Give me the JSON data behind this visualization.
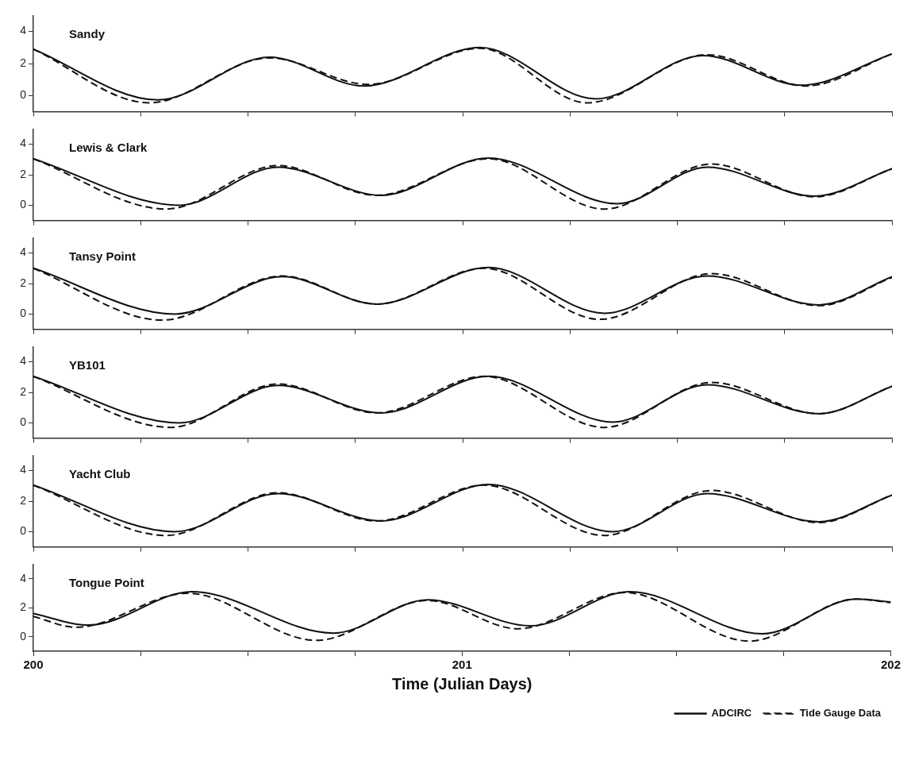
{
  "chart_data": [
    {
      "type": "line",
      "title": "Sandy",
      "xlim": [
        200,
        202
      ],
      "xticks": [
        200,
        {
          "value": 200.25,
          "label": null
        },
        {
          "value": 200.5,
          "label": null
        },
        {
          "value": 200.75,
          "label": null
        },
        201,
        {
          "value": 201.25,
          "label": null
        },
        {
          "value": 201.5,
          "label": null
        },
        {
          "value": 201.75,
          "label": null
        },
        202
      ],
      "ylim": [
        -1,
        5
      ],
      "yticks": [
        0,
        2,
        4
      ],
      "tick_labels": "y",
      "legend": false,
      "series": [
        {
          "color": "#111111",
          "line_style": "solid",
          "x": [
            200,
            200.29,
            200.55,
            200.77,
            201.04,
            201.31,
            201.56,
            201.79,
            202
          ],
          "values": [
            2.9,
            -0.27,
            2.4,
            0.6,
            3.0,
            -0.2,
            2.5,
            0.65,
            2.6
          ]
        },
        {
          "color": "#111111",
          "line_style": "dashed",
          "x": [
            200,
            200.27,
            200.55,
            200.78,
            201.04,
            201.29,
            201.57,
            201.8,
            202
          ],
          "values": [
            2.9,
            -0.45,
            2.35,
            0.7,
            2.95,
            -0.45,
            2.55,
            0.6,
            2.6
          ]
        }
      ]
    },
    {
      "type": "line",
      "title": "Lewis & Clark",
      "xlim": [
        200,
        202
      ],
      "xticks": [
        200,
        {
          "value": 200.25,
          "label": null
        },
        {
          "value": 200.5,
          "label": null
        },
        {
          "value": 200.75,
          "label": null
        },
        201,
        {
          "value": 201.25,
          "label": null
        },
        {
          "value": 201.5,
          "label": null
        },
        {
          "value": 201.75,
          "label": null
        },
        202
      ],
      "ylim": [
        -1,
        5
      ],
      "yticks": [
        0,
        2,
        4
      ],
      "tick_labels": "y",
      "legend": false,
      "series": [
        {
          "color": "#111111",
          "line_style": "solid",
          "x": [
            200,
            200.34,
            200.57,
            200.81,
            201.06,
            201.36,
            201.57,
            201.82,
            202
          ],
          "values": [
            3.05,
            0.0,
            2.5,
            0.65,
            3.1,
            0.1,
            2.5,
            0.6,
            2.4
          ]
        },
        {
          "color": "#111111",
          "line_style": "dashed",
          "x": [
            200,
            200.31,
            200.57,
            200.8,
            201.06,
            201.33,
            201.58,
            201.82,
            202
          ],
          "values": [
            3.05,
            -0.25,
            2.6,
            0.65,
            3.05,
            -0.25,
            2.7,
            0.55,
            2.4
          ]
        }
      ]
    },
    {
      "type": "line",
      "title": "Tansy Point",
      "xlim": [
        200,
        202
      ],
      "xticks": [
        200,
        {
          "value": 200.25,
          "label": null
        },
        {
          "value": 200.5,
          "label": null
        },
        {
          "value": 200.75,
          "label": null
        },
        201,
        {
          "value": 201.25,
          "label": null
        },
        {
          "value": 201.5,
          "label": null
        },
        {
          "value": 201.75,
          "label": null
        },
        202
      ],
      "ylim": [
        -1,
        5
      ],
      "yticks": [
        0,
        2,
        4
      ],
      "tick_labels": "y",
      "legend": false,
      "series": [
        {
          "color": "#111111",
          "line_style": "solid",
          "x": [
            200,
            200.33,
            200.58,
            200.8,
            201.06,
            201.33,
            201.57,
            201.83,
            202
          ],
          "values": [
            3.0,
            0.0,
            2.45,
            0.65,
            3.05,
            0.05,
            2.5,
            0.6,
            2.45
          ]
        },
        {
          "color": "#111111",
          "line_style": "dashed",
          "x": [
            200,
            200.3,
            200.58,
            200.8,
            201.05,
            201.32,
            201.58,
            201.83,
            202
          ],
          "values": [
            3.0,
            -0.4,
            2.5,
            0.65,
            3.0,
            -0.35,
            2.65,
            0.55,
            2.4
          ]
        }
      ]
    },
    {
      "type": "line",
      "title": "YB101",
      "xlim": [
        200,
        202
      ],
      "xticks": [
        200,
        {
          "value": 200.25,
          "label": null
        },
        {
          "value": 200.5,
          "label": null
        },
        {
          "value": 200.75,
          "label": null
        },
        201,
        {
          "value": 201.25,
          "label": null
        },
        {
          "value": 201.5,
          "label": null
        },
        {
          "value": 201.75,
          "label": null
        },
        202
      ],
      "ylim": [
        -1,
        5
      ],
      "yticks": [
        0,
        2,
        4
      ],
      "tick_labels": "y",
      "legend": false,
      "series": [
        {
          "color": "#111111",
          "line_style": "solid",
          "x": [
            200,
            200.34,
            200.57,
            200.81,
            201.06,
            201.35,
            201.57,
            201.83,
            202
          ],
          "values": [
            3.05,
            0.0,
            2.45,
            0.65,
            3.05,
            0.05,
            2.5,
            0.6,
            2.4
          ]
        },
        {
          "color": "#111111",
          "line_style": "dashed",
          "x": [
            200,
            200.32,
            200.57,
            200.8,
            201.05,
            201.33,
            201.58,
            201.83,
            202
          ],
          "values": [
            3.05,
            -0.3,
            2.55,
            0.65,
            3.05,
            -0.3,
            2.65,
            0.6,
            2.4
          ]
        }
      ]
    },
    {
      "type": "line",
      "title": "Yacht Club",
      "xlim": [
        200,
        202
      ],
      "xticks": [
        200,
        {
          "value": 200.25,
          "label": null
        },
        {
          "value": 200.5,
          "label": null
        },
        {
          "value": 200.75,
          "label": null
        },
        201,
        {
          "value": 201.25,
          "label": null
        },
        {
          "value": 201.5,
          "label": null
        },
        {
          "value": 201.75,
          "label": null
        },
        202
      ],
      "ylim": [
        -1,
        5
      ],
      "yticks": [
        0,
        2,
        4
      ],
      "tick_labels": "y",
      "legend": false,
      "series": [
        {
          "color": "#111111",
          "line_style": "solid",
          "x": [
            200,
            200.33,
            200.57,
            200.81,
            201.06,
            201.35,
            201.57,
            201.83,
            202
          ],
          "values": [
            3.05,
            0.0,
            2.5,
            0.7,
            3.1,
            0.0,
            2.5,
            0.65,
            2.4
          ]
        },
        {
          "color": "#111111",
          "line_style": "dashed",
          "x": [
            200,
            200.31,
            200.57,
            200.8,
            201.05,
            201.33,
            201.58,
            201.83,
            202
          ],
          "values": [
            3.05,
            -0.25,
            2.55,
            0.7,
            3.05,
            -0.25,
            2.7,
            0.6,
            2.4
          ]
        }
      ]
    },
    {
      "type": "line",
      "title": "Tongue Point",
      "xlabel": "Time (Julian Days)",
      "xlim": [
        200,
        202
      ],
      "xticks": [
        200,
        {
          "value": 200.25,
          "label": null
        },
        {
          "value": 200.5,
          "label": null
        },
        {
          "value": 200.75,
          "label": null
        },
        201,
        {
          "value": 201.25,
          "label": null
        },
        {
          "value": 201.5,
          "label": null
        },
        {
          "value": 201.75,
          "label": null
        },
        202
      ],
      "ylim": [
        -1,
        5
      ],
      "yticks": [
        0,
        2,
        4
      ],
      "legend": "bottom right",
      "series": [
        {
          "name": "ADCIRC",
          "color": "#111111",
          "line_style": "solid",
          "x": [
            200,
            200.13,
            200.37,
            200.7,
            200.92,
            201.16,
            201.39,
            201.7,
            201.92,
            202
          ],
          "values": [
            1.6,
            0.8,
            3.1,
            0.25,
            2.55,
            0.75,
            3.1,
            0.2,
            2.6,
            2.4
          ]
        },
        {
          "name": "Tide Gauge Data",
          "color": "#111111",
          "line_style": "dashed",
          "x": [
            200,
            200.1,
            200.36,
            200.66,
            200.92,
            201.13,
            201.38,
            201.67,
            201.92,
            202
          ],
          "values": [
            1.4,
            0.65,
            3.0,
            -0.25,
            2.5,
            0.55,
            3.05,
            -0.3,
            2.6,
            2.35
          ]
        }
      ]
    }
  ]
}
